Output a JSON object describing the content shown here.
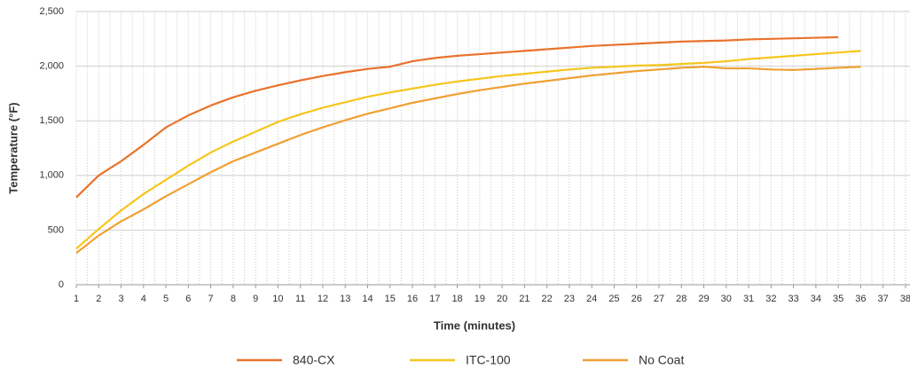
{
  "chart_data": {
    "type": "line",
    "y_label": "Temperature (°F)",
    "x_label": "Time (minutes)",
    "xlim": [
      1,
      38.2
    ],
    "xticks": [
      1,
      2,
      3,
      4,
      5,
      6,
      7,
      8,
      9,
      10,
      11,
      12,
      13,
      14,
      15,
      16,
      17,
      18,
      19,
      20,
      21,
      22,
      23,
      24,
      25,
      26,
      27,
      28,
      29,
      30,
      31,
      32,
      33,
      34,
      35,
      36,
      37,
      38
    ],
    "ylim": [
      0,
      2500
    ],
    "yticks": [
      0,
      500,
      {
        "value": 1000,
        "label": "1,000"
      },
      {
        "value": 1500,
        "label": "1,500"
      },
      {
        "value": 2000,
        "label": "2,000"
      },
      {
        "value": 2500,
        "label": "2,500"
      }
    ],
    "grid": true,
    "legend": "bottom",
    "series": [
      {
        "name": "840-CX",
        "color": "#e8732c",
        "x": [
          1,
          2,
          3,
          4,
          5,
          6,
          7,
          8,
          9,
          10,
          11,
          12,
          13,
          14,
          15,
          16,
          17,
          18,
          19,
          20,
          21,
          22,
          23,
          24,
          25,
          26,
          27,
          28,
          29,
          30,
          31,
          32,
          33,
          34,
          35
        ],
        "values": [
          800,
          1000,
          1130,
          1280,
          1440,
          1550,
          1640,
          1715,
          1775,
          1825,
          1870,
          1910,
          1945,
          1975,
          1995,
          2045,
          2075,
          2095,
          2110,
          2125,
          2140,
          2155,
          2170,
          2185,
          2195,
          2205,
          2215,
          2225,
          2230,
          2235,
          2245,
          2250,
          2255,
          2260,
          2265
        ]
      },
      {
        "name": "ITC-100",
        "color": "#f5c61c",
        "x": [
          1,
          2,
          3,
          4,
          5,
          6,
          7,
          8,
          9,
          10,
          11,
          12,
          13,
          14,
          15,
          16,
          17,
          18,
          19,
          20,
          21,
          22,
          23,
          24,
          25,
          26,
          27,
          28,
          29,
          30,
          31,
          32,
          33,
          34,
          35,
          36
        ],
        "values": [
          330,
          510,
          680,
          830,
          960,
          1090,
          1210,
          1310,
          1400,
          1490,
          1560,
          1620,
          1670,
          1720,
          1760,
          1795,
          1830,
          1860,
          1885,
          1910,
          1930,
          1950,
          1970,
          1985,
          1995,
          2005,
          2010,
          2020,
          2030,
          2045,
          2065,
          2080,
          2095,
          2110,
          2125,
          2140
        ]
      },
      {
        "name": "No Coat",
        "color": "#f0a032",
        "x": [
          1,
          2,
          3,
          4,
          5,
          6,
          7,
          8,
          9,
          10,
          11,
          12,
          13,
          14,
          15,
          16,
          17,
          18,
          19,
          20,
          21,
          22,
          23,
          24,
          25,
          26,
          27,
          28,
          29,
          30,
          31,
          32,
          33,
          34,
          35,
          36
        ],
        "values": [
          290,
          450,
          580,
          690,
          810,
          920,
          1030,
          1130,
          1210,
          1290,
          1370,
          1440,
          1505,
          1565,
          1615,
          1665,
          1705,
          1745,
          1780,
          1810,
          1840,
          1865,
          1890,
          1915,
          1935,
          1955,
          1970,
          1985,
          1995,
          1980,
          1980,
          1970,
          1965,
          1975,
          1985,
          1995
        ]
      }
    ]
  }
}
